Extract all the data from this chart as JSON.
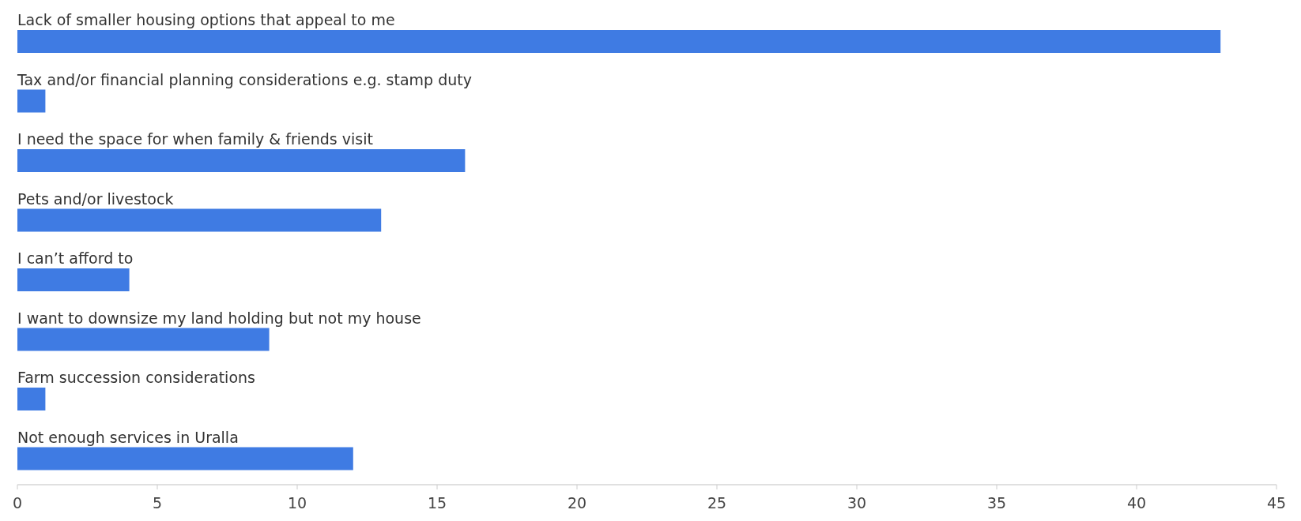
{
  "chart_data": {
    "type": "bar",
    "orientation": "horizontal",
    "categories": [
      "Lack of smaller housing options that appeal to me",
      "Tax and/or financial planning considerations e.g. stamp duty",
      "I need the space for when family & friends visit",
      "Pets and/or livestock",
      "I can’t afford to",
      "I want to downsize my land holding but not my house",
      "Farm succession considerations",
      "Not enough services in Uralla"
    ],
    "values": [
      43,
      1,
      16,
      13,
      4,
      9,
      1,
      12
    ],
    "color": "#3f7be3",
    "xlim": [
      0,
      45
    ],
    "xticks": [
      0,
      5,
      10,
      15,
      20,
      25,
      30,
      35,
      40,
      45
    ],
    "grid": false
  }
}
